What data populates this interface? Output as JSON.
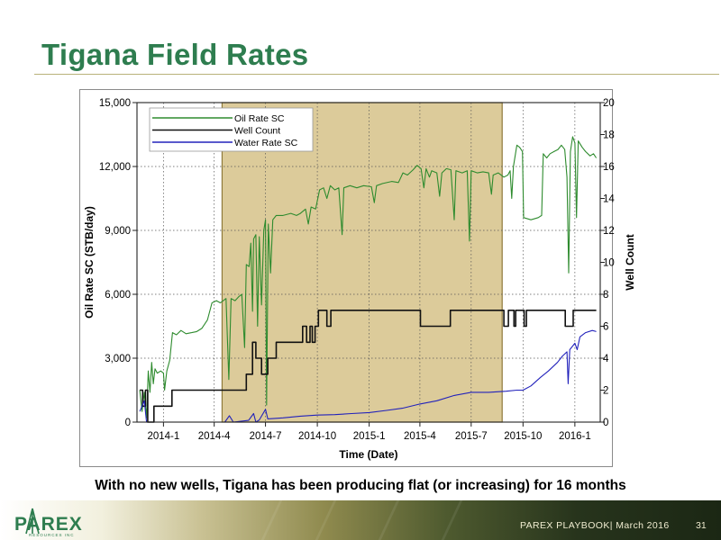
{
  "slide": {
    "title": "Tigana Field Rates",
    "caption": "With no new wells, Tigana has been producing flat (or increasing) for 16 months",
    "footer_text": "PAREX PLAYBOOK| March  2016",
    "page_number": "31",
    "logo_name": "PAREX",
    "logo_subtext": "RESOURCES INC",
    "colors": {
      "title": "#2e7d4f",
      "highlight": "#dccb9a",
      "oil": "#2e8b2e",
      "wells": "#111111",
      "water": "#2222bb"
    }
  },
  "chart_data": {
    "type": "line",
    "xlabel": "Time (Date)",
    "ylabel": "Oil Rate SC (STB/day)",
    "y2label": "Well Count",
    "x_ticks": [
      "2014-1",
      "2014-4",
      "2014-7",
      "2014-10",
      "2015-1",
      "2015-4",
      "2015-7",
      "2015-10",
      "2016-1"
    ],
    "y_ticks": [
      "0",
      "3,000",
      "6,000",
      "9,000",
      "12,000",
      "15,000"
    ],
    "y2_ticks": [
      "0",
      "2",
      "4",
      "6",
      "8",
      "10",
      "12",
      "14",
      "16",
      "18",
      "20"
    ],
    "ylim": [
      0,
      15000
    ],
    "y2lim": [
      0,
      20
    ],
    "xlim": [
      "2013-11-15",
      "2016-02-15"
    ],
    "grid": true,
    "legend_position": "top-left",
    "highlight_range": [
      "2014-04-15",
      "2015-08-25"
    ],
    "series": [
      {
        "name": "Oil Rate SC",
        "axis": "left",
        "color": "#2e8b2e",
        "points": [
          [
            "2013-11-20",
            1500
          ],
          [
            "2013-11-24",
            500
          ],
          [
            "2013-11-28",
            1400
          ],
          [
            "2013-12-02",
            200
          ],
          [
            "2013-12-05",
            2400
          ],
          [
            "2013-12-08",
            1400
          ],
          [
            "2013-12-11",
            2800
          ],
          [
            "2013-12-14",
            1800
          ],
          [
            "2013-12-17",
            2500
          ],
          [
            "2013-12-21",
            2300
          ],
          [
            "2013-12-27",
            2400
          ],
          [
            "2014-01-01",
            2300
          ],
          [
            "2014-01-03",
            1500
          ],
          [
            "2014-01-07",
            2400
          ],
          [
            "2014-01-12",
            2900
          ],
          [
            "2014-01-17",
            4200
          ],
          [
            "2014-01-24",
            4100
          ],
          [
            "2014-02-01",
            4300
          ],
          [
            "2014-02-10",
            4150
          ],
          [
            "2014-02-20",
            4200
          ],
          [
            "2014-03-01",
            4250
          ],
          [
            "2014-03-10",
            4400
          ],
          [
            "2014-03-20",
            4800
          ],
          [
            "2014-03-28",
            5600
          ],
          [
            "2014-04-05",
            5700
          ],
          [
            "2014-04-12",
            5600
          ],
          [
            "2014-04-22",
            5800
          ],
          [
            "2014-04-27",
            2000
          ],
          [
            "2014-05-01",
            5800
          ],
          [
            "2014-05-08",
            5700
          ],
          [
            "2014-05-15",
            5900
          ],
          [
            "2014-05-20",
            6000
          ],
          [
            "2014-05-25",
            3500
          ],
          [
            "2014-05-28",
            7400
          ],
          [
            "2014-06-02",
            7300
          ],
          [
            "2014-06-05",
            8400
          ],
          [
            "2014-06-08",
            5200
          ],
          [
            "2014-06-10",
            8600
          ],
          [
            "2014-06-14",
            8800
          ],
          [
            "2014-06-17",
            4500
          ],
          [
            "2014-06-20",
            8700
          ],
          [
            "2014-06-24",
            5500
          ],
          [
            "2014-06-28",
            9000
          ],
          [
            "2014-07-01",
            9500
          ],
          [
            "2014-07-03",
            800
          ],
          [
            "2014-07-06",
            9300
          ],
          [
            "2014-07-10",
            7000
          ],
          [
            "2014-07-14",
            9500
          ],
          [
            "2014-07-20",
            9700
          ],
          [
            "2014-08-01",
            9700
          ],
          [
            "2014-08-15",
            9800
          ],
          [
            "2014-08-25",
            9700
          ],
          [
            "2014-09-01",
            9800
          ],
          [
            "2014-09-10",
            10000
          ],
          [
            "2014-09-15",
            9300
          ],
          [
            "2014-09-20",
            10100
          ],
          [
            "2014-09-28",
            10000
          ],
          [
            "2014-10-05",
            10900
          ],
          [
            "2014-10-12",
            11000
          ],
          [
            "2014-10-18",
            10500
          ],
          [
            "2014-10-24",
            11100
          ],
          [
            "2014-11-01",
            10900
          ],
          [
            "2014-11-08",
            11000
          ],
          [
            "2014-11-14",
            8800
          ],
          [
            "2014-11-17",
            11000
          ],
          [
            "2014-11-28",
            11100
          ],
          [
            "2014-12-10",
            11000
          ],
          [
            "2014-12-22",
            11100
          ],
          [
            "2015-01-05",
            11050
          ],
          [
            "2015-01-10",
            10300
          ],
          [
            "2015-01-14",
            11100
          ],
          [
            "2015-01-25",
            11200
          ],
          [
            "2015-02-10",
            11300
          ],
          [
            "2015-02-22",
            11250
          ],
          [
            "2015-03-02",
            11700
          ],
          [
            "2015-03-10",
            11600
          ],
          [
            "2015-03-20",
            11850
          ],
          [
            "2015-03-27",
            12050
          ],
          [
            "2015-04-03",
            11900
          ],
          [
            "2015-04-08",
            11000
          ],
          [
            "2015-04-12",
            11900
          ],
          [
            "2015-04-18",
            11500
          ],
          [
            "2015-04-22",
            11800
          ],
          [
            "2015-05-01",
            11700
          ],
          [
            "2015-05-06",
            10600
          ],
          [
            "2015-05-10",
            11700
          ],
          [
            "2015-05-18",
            11900
          ],
          [
            "2015-05-26",
            11850
          ],
          [
            "2015-06-01",
            9500
          ],
          [
            "2015-06-04",
            11800
          ],
          [
            "2015-06-15",
            11700
          ],
          [
            "2015-06-24",
            11800
          ],
          [
            "2015-06-28",
            8500
          ],
          [
            "2015-07-01",
            11800
          ],
          [
            "2015-07-12",
            11700
          ],
          [
            "2015-07-22",
            11750
          ],
          [
            "2015-08-01",
            11700
          ],
          [
            "2015-08-06",
            10700
          ],
          [
            "2015-08-09",
            11600
          ],
          [
            "2015-08-18",
            11700
          ],
          [
            "2015-08-28",
            11500
          ],
          [
            "2015-09-04",
            11600
          ],
          [
            "2015-09-08",
            11800
          ],
          [
            "2015-09-11",
            10500
          ],
          [
            "2015-09-14",
            12000
          ],
          [
            "2015-09-20",
            13000
          ],
          [
            "2015-09-25",
            12900
          ],
          [
            "2015-09-30",
            12700
          ],
          [
            "2015-10-02",
            9600
          ],
          [
            "2015-10-15",
            9500
          ],
          [
            "2015-10-28",
            9600
          ],
          [
            "2015-11-03",
            9700
          ],
          [
            "2015-11-06",
            12600
          ],
          [
            "2015-11-12",
            12400
          ],
          [
            "2015-11-18",
            12600
          ],
          [
            "2015-11-25",
            12700
          ],
          [
            "2015-12-02",
            12800
          ],
          [
            "2015-12-08",
            13000
          ],
          [
            "2015-12-14",
            12800
          ],
          [
            "2015-12-18",
            11500
          ],
          [
            "2015-12-21",
            7000
          ],
          [
            "2015-12-24",
            12700
          ],
          [
            "2015-12-28",
            13400
          ],
          [
            "2016-01-01",
            13100
          ],
          [
            "2016-01-04",
            9600
          ],
          [
            "2016-01-07",
            13200
          ],
          [
            "2016-01-14",
            12900
          ],
          [
            "2016-01-20",
            12700
          ],
          [
            "2016-01-28",
            12500
          ],
          [
            "2016-02-03",
            12600
          ],
          [
            "2016-02-08",
            12400
          ]
        ]
      },
      {
        "name": "Well Count",
        "axis": "right",
        "color": "#111111",
        "points": [
          [
            "2013-11-20",
            2
          ],
          [
            "2013-11-25",
            1
          ],
          [
            "2013-11-30",
            2
          ],
          [
            "2013-12-04",
            0
          ],
          [
            "2013-12-15",
            1
          ],
          [
            "2014-01-16",
            2
          ],
          [
            "2014-05-28",
            3
          ],
          [
            "2014-06-08",
            5
          ],
          [
            "2014-06-14",
            4
          ],
          [
            "2014-06-24",
            3
          ],
          [
            "2014-07-05",
            4
          ],
          [
            "2014-07-20",
            5
          ],
          [
            "2014-09-05",
            6
          ],
          [
            "2014-09-12",
            5
          ],
          [
            "2014-09-18",
            6
          ],
          [
            "2014-09-22",
            5
          ],
          [
            "2014-09-27",
            6
          ],
          [
            "2014-10-03",
            7
          ],
          [
            "2014-10-18",
            6
          ],
          [
            "2014-10-25",
            7
          ],
          [
            "2015-04-02",
            6
          ],
          [
            "2015-05-25",
            7
          ],
          [
            "2015-08-28",
            6
          ],
          [
            "2015-09-05",
            7
          ],
          [
            "2015-09-15",
            6
          ],
          [
            "2015-09-18",
            7
          ],
          [
            "2015-10-03",
            6
          ],
          [
            "2015-10-07",
            7
          ],
          [
            "2015-12-15",
            6
          ],
          [
            "2015-12-29",
            7
          ],
          [
            "2016-02-08",
            7
          ]
        ]
      },
      {
        "name": "Water Rate SC",
        "axis": "left",
        "color": "#2222bb",
        "points": [
          [
            "2013-11-20",
            500
          ],
          [
            "2013-11-28",
            1000
          ],
          [
            "2013-12-02",
            0
          ],
          [
            "2014-04-20",
            0
          ],
          [
            "2014-04-28",
            300
          ],
          [
            "2014-05-05",
            0
          ],
          [
            "2014-06-01",
            80
          ],
          [
            "2014-06-10",
            400
          ],
          [
            "2014-06-14",
            0
          ],
          [
            "2014-06-20",
            100
          ],
          [
            "2014-07-01",
            600
          ],
          [
            "2014-07-05",
            150
          ],
          [
            "2014-08-01",
            200
          ],
          [
            "2014-09-01",
            280
          ],
          [
            "2014-10-01",
            330
          ],
          [
            "2014-11-01",
            350
          ],
          [
            "2014-12-01",
            400
          ],
          [
            "2015-01-01",
            450
          ],
          [
            "2015-02-01",
            550
          ],
          [
            "2015-03-01",
            650
          ],
          [
            "2015-04-01",
            850
          ],
          [
            "2015-05-01",
            1000
          ],
          [
            "2015-06-01",
            1250
          ],
          [
            "2015-07-01",
            1400
          ],
          [
            "2015-08-01",
            1400
          ],
          [
            "2015-09-01",
            1450
          ],
          [
            "2015-09-20",
            1500
          ],
          [
            "2015-10-01",
            1500
          ],
          [
            "2015-10-15",
            1700
          ],
          [
            "2015-11-01",
            2100
          ],
          [
            "2015-11-15",
            2400
          ],
          [
            "2015-12-01",
            2800
          ],
          [
            "2015-12-10",
            3100
          ],
          [
            "2015-12-18",
            3300
          ],
          [
            "2015-12-20",
            1800
          ],
          [
            "2015-12-23",
            3400
          ],
          [
            "2016-01-01",
            3700
          ],
          [
            "2016-01-05",
            3400
          ],
          [
            "2016-01-10",
            4000
          ],
          [
            "2016-01-20",
            4200
          ],
          [
            "2016-02-01",
            4300
          ],
          [
            "2016-02-08",
            4250
          ]
        ]
      }
    ]
  }
}
